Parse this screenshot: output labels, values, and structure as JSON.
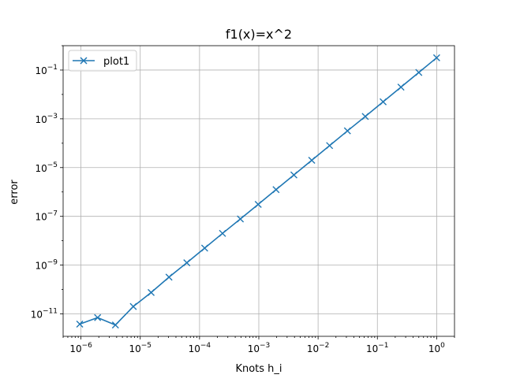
{
  "chart_data": {
    "type": "line",
    "title": "f1(x)=x^2",
    "xlabel": "Knots h_i",
    "ylabel": "error",
    "xscale": "log",
    "yscale": "log",
    "grid": true,
    "legend_position": "top-left",
    "colors": {
      "series": "#1f77b4"
    },
    "xlim": [
      5e-07,
      2
    ],
    "ylim": [
      1.2e-12,
      1.0
    ],
    "x_ticks": [
      {
        "value": 1e-06,
        "base": "10",
        "exp": "−6"
      },
      {
        "value": 1e-05,
        "base": "10",
        "exp": "−5"
      },
      {
        "value": 0.0001,
        "base": "10",
        "exp": "−4"
      },
      {
        "value": 0.001,
        "base": "10",
        "exp": "−3"
      },
      {
        "value": 0.01,
        "base": "10",
        "exp": "−2"
      },
      {
        "value": 0.1,
        "base": "10",
        "exp": "−1"
      },
      {
        "value": 1,
        "base": "10",
        "exp": "0"
      }
    ],
    "y_ticks": [
      {
        "value": 1e-11,
        "base": "10",
        "exp": "−11"
      },
      {
        "value": 1e-09,
        "base": "10",
        "exp": "−9"
      },
      {
        "value": 1e-07,
        "base": "10",
        "exp": "−7"
      },
      {
        "value": 1e-05,
        "base": "10",
        "exp": "−5"
      },
      {
        "value": 0.001,
        "base": "10",
        "exp": "−3"
      },
      {
        "value": 0.1,
        "base": "10",
        "exp": "−1"
      }
    ],
    "series": [
      {
        "name": "plot1",
        "marker": "x",
        "x": [
          9.5367e-07,
          1.9073e-06,
          3.8147e-06,
          7.6294e-06,
          1.5259e-05,
          3.0518e-05,
          6.1035e-05,
          0.00012207,
          0.00024414,
          0.00048828,
          0.00097656,
          0.0019531,
          0.0039063,
          0.0078125,
          0.015625,
          0.03125,
          0.0625,
          0.125,
          0.25,
          0.5,
          1.0
        ],
        "y": [
          3.8e-12,
          7e-12,
          3.5e-12,
          2e-11,
          7.5e-11,
          3.2e-10,
          1.25e-09,
          5e-09,
          2e-08,
          7.8e-08,
          3.1e-07,
          1.25e-06,
          5e-06,
          2e-05,
          8e-05,
          0.00032,
          0.00125,
          0.005,
          0.02,
          0.08,
          0.32
        ]
      }
    ]
  }
}
